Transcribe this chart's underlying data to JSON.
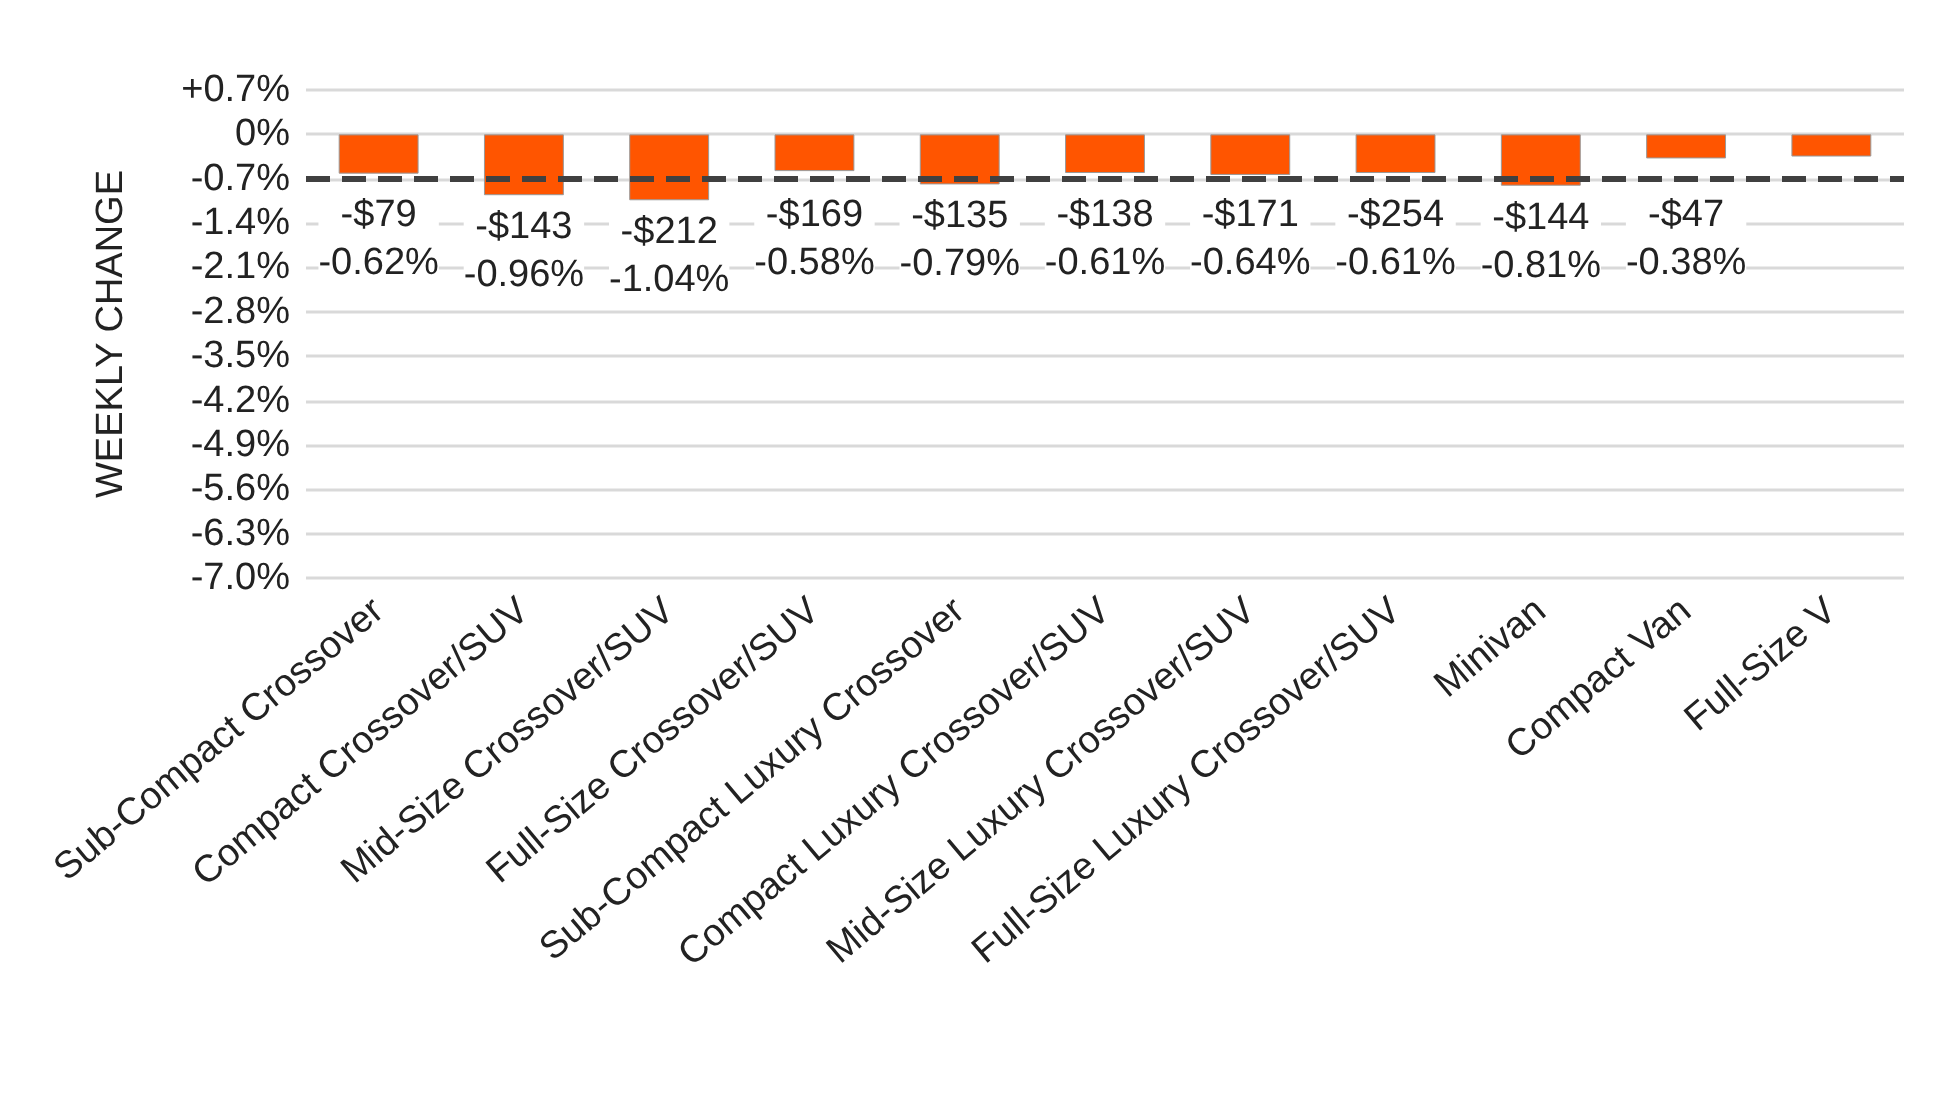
{
  "chart_data": {
    "type": "bar",
    "ylabel": "WEEKLY CHANGE",
    "categories": [
      "Sub-Compact Crossover",
      "Compact Crossover/SUV",
      "Mid-Size Crossover/SUV",
      "Full-Size Crossover/SUV",
      "Sub-Compact Luxury Crossover",
      "Compact Luxury Crossover/SUV",
      "Mid-Size Luxury Crossover/SUV",
      "Full-Size Luxury Crossover/SUV",
      "Minivan",
      "Compact Van",
      "Full-Size V"
    ],
    "values": [
      -0.62,
      -0.96,
      -1.04,
      -0.58,
      -0.79,
      -0.61,
      -0.64,
      -0.61,
      -0.81,
      -0.38,
      -0.35
    ],
    "value_labels": [
      "-$79\n-0.62%",
      "-$143\n-0.96%",
      "-$212\n-1.04%",
      "-$169\n-0.58%",
      "-$135\n-0.79%",
      "-$138\n-0.61%",
      "-$171\n-0.64%",
      "-$254\n-0.61%",
      "-$144\n-0.81%",
      "-$47\n-0.38%",
      null
    ],
    "color": "#ff5500",
    "ylim": [
      -7.0,
      0.7
    ],
    "yticks": [
      {
        "value": 0.7,
        "label": "+0.7%"
      },
      {
        "value": 0,
        "label": "0%"
      },
      {
        "value": -0.7,
        "label": "-0.7%"
      },
      {
        "value": -1.4,
        "label": "-1.4%"
      },
      {
        "value": -2.1,
        "label": "-2.1%"
      },
      {
        "value": -2.8,
        "label": "-2.8%"
      },
      {
        "value": -3.5,
        "label": "-3.5%"
      },
      {
        "value": -4.2,
        "label": "-4.2%"
      },
      {
        "value": -4.9,
        "label": "-4.9%"
      },
      {
        "value": -5.6,
        "label": "-5.6%"
      },
      {
        "value": -6.3,
        "label": "-6.3%"
      },
      {
        "value": -7.0,
        "label": "-7.0%"
      }
    ],
    "ref_lines": [
      {
        "axis": "y",
        "value": -0.7,
        "color": "#404040",
        "line_style": "dashed"
      }
    ],
    "grid": "y"
  }
}
